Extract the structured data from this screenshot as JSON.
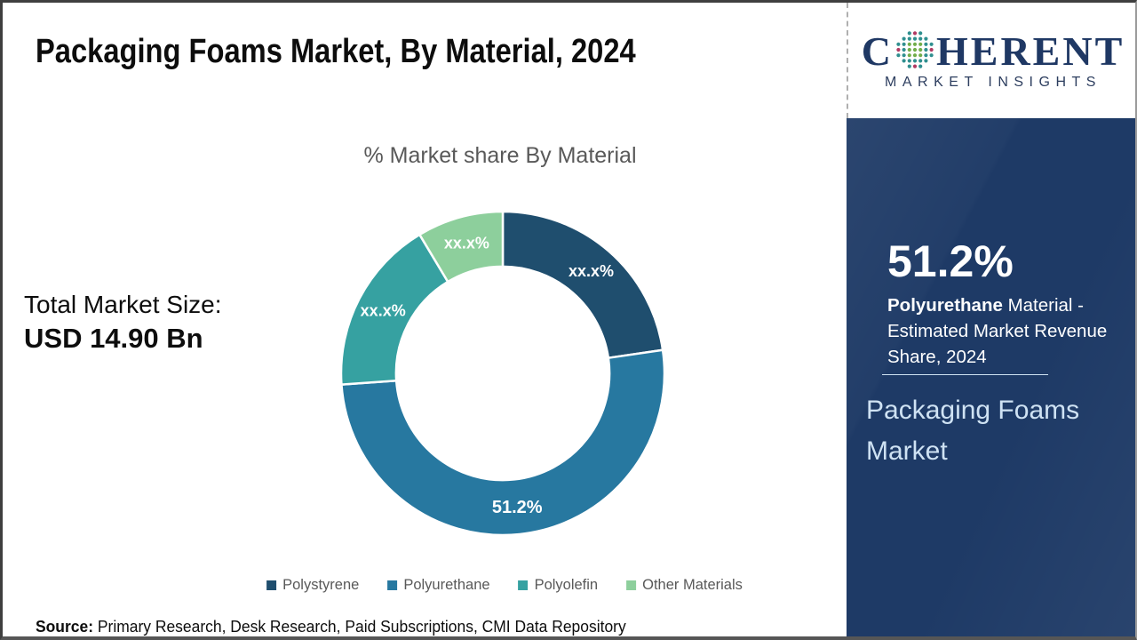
{
  "page": {
    "title": "Packaging Foams Market, By Material, 2024",
    "source_label": "Source:",
    "source_text": " Primary Research, Desk Research, Paid Subscriptions, CMI Data Repository"
  },
  "stats": {
    "total_label": "Total Market Size:",
    "total_value": "USD 14.90 Bn"
  },
  "chart_data": {
    "type": "pie",
    "subtype": "donut",
    "title": "% Market share By Material",
    "start_angle_deg": 0,
    "direction": "clockwise",
    "categories": [
      "Polystyrene",
      "Polyurethane",
      "Polyolefin",
      "Other Materials"
    ],
    "values": [
      22.7,
      51.2,
      17.5,
      8.6
    ],
    "slice_labels": [
      "xx.x%",
      "51.2%",
      "xx.x%",
      "xx.x%"
    ],
    "colors": [
      "#1F4E6E",
      "#2778A0",
      "#36A1A1",
      "#8DCF9C"
    ],
    "legend_position": "bottom",
    "inner_radius_ratio": 0.66
  },
  "sidebar": {
    "logo": {
      "brand_c": "C",
      "brand_rest": "HERENT",
      "subtitle": "MARKET INSIGHTS",
      "globe_colors": {
        "teal": "#2F8F8F",
        "green": "#72AD4A",
        "magenta": "#B23A63"
      }
    },
    "highlight_value": "51.2%",
    "highlight_bold": "Polyurethane",
    "highlight_rest": " Material - Estimated Market Revenue Share, 2024",
    "panel_title": "Packaging Foams Market",
    "colors": {
      "panel_bg": "#1E3A66",
      "panel_title_color": "#CFE2F3",
      "brand_navy": "#1F3864"
    }
  }
}
